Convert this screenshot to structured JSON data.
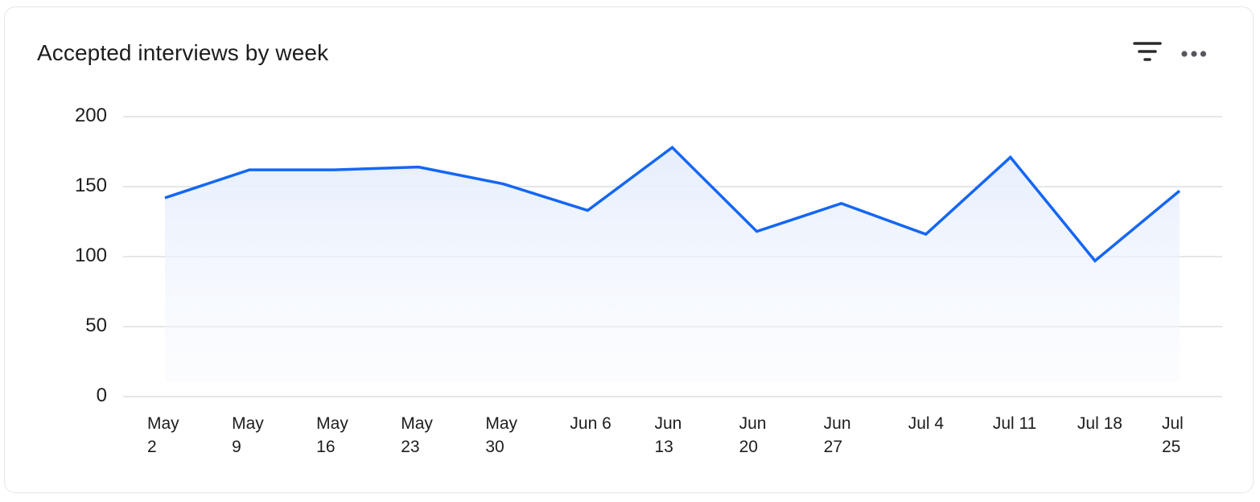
{
  "card": {
    "title": "Accepted interviews by week",
    "actions": [
      {
        "icon": "filter-icon",
        "label": "Filter"
      },
      {
        "icon": "more-horizontal-icon",
        "label": "More options"
      }
    ]
  },
  "colors": {
    "line": "#1466f5",
    "fill_top": "#e8effc",
    "grid": "#dcdfe4",
    "text": "#1c1d1f",
    "icon": "#2a2b2e"
  },
  "chart_data": {
    "type": "area",
    "title": "Accepted interviews by week",
    "xlabel": "",
    "ylabel": "",
    "categories": [
      "May 2",
      "May 9",
      "May 16",
      "May 23",
      "May 30",
      "Jun 6",
      "Jun 13",
      "Jun 20",
      "Jun 27",
      "Jul 4",
      "Jul 11",
      "Jul 18",
      "Jul 25"
    ],
    "x_tick_labels": [
      "May\n2",
      "May\n9",
      "May\n16",
      "May\n23",
      "May\n30",
      "Jun 6",
      "Jun\n13",
      "Jun\n20",
      "Jun\n27",
      "Jul 4",
      "Jul 11",
      "Jul 18",
      "Jul\n25"
    ],
    "series": [
      {
        "name": "Accepted interviews",
        "values": [
          142,
          162,
          162,
          164,
          152,
          133,
          178,
          118,
          138,
          116,
          171,
          97,
          147
        ]
      }
    ],
    "ylim": [
      0,
      200
    ],
    "y_ticks": [
      "200",
      "150",
      "100",
      "50",
      "0"
    ],
    "y_tick_values": [
      200,
      150,
      100,
      50,
      0
    ],
    "grid": true,
    "legend": "none"
  }
}
